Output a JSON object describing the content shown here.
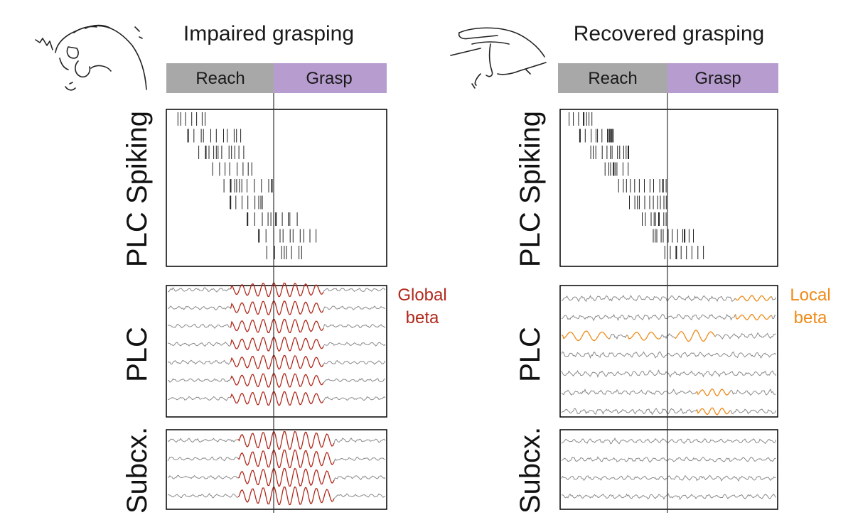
{
  "colors": {
    "reach_bar": "#a8a8a8",
    "grasp_bar": "#b79ccf",
    "global_beta": "#b1291c",
    "local_beta": "#ef8a17",
    "trace": "#8a8a8a",
    "spike": "#222222",
    "frame": "#000000"
  },
  "panels": [
    {
      "title": "Impaired grasping",
      "hand_icon": "clenched-hand-tremor-icon",
      "phases": [
        "Reach",
        "Grasp"
      ],
      "rows": [
        "PLC Spiking",
        "PLC",
        "Subcx."
      ],
      "annotation": [
        "Global",
        "beta"
      ],
      "beta_mode": "global"
    },
    {
      "title": "Recovered grasping",
      "hand_icon": "open-hand-icon",
      "phases": [
        "Reach",
        "Grasp"
      ],
      "rows": [
        "PLC Spiking",
        "PLC",
        "Subcx."
      ],
      "annotation": [
        "Local",
        "beta"
      ],
      "beta_mode": "local"
    }
  ]
}
